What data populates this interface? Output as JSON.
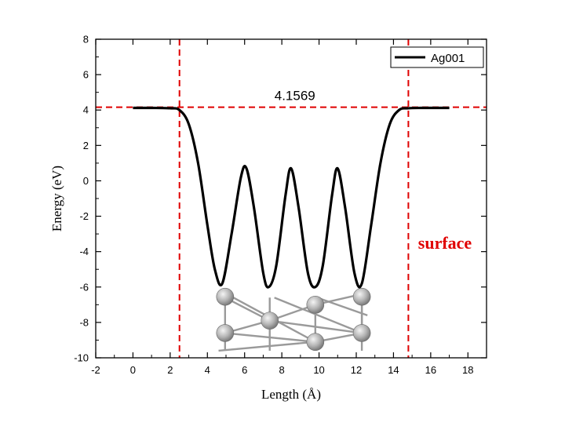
{
  "chart_data": {
    "type": "line",
    "title": "",
    "xlabel": "Length (Å)",
    "ylabel": "Energy (eV)",
    "xlim": [
      -2,
      19
    ],
    "ylim": [
      -10,
      8
    ],
    "xticks": [
      -2,
      0,
      2,
      4,
      6,
      8,
      10,
      12,
      14,
      16,
      18
    ],
    "yticks": [
      -10,
      -8,
      -6,
      -4,
      -2,
      0,
      2,
      4,
      6,
      8
    ],
    "grid": false,
    "legend_position": "top-right",
    "series": [
      {
        "name": "Ag001",
        "color": "#000000",
        "x": [
          0.0,
          1.0,
          2.0,
          2.5,
          3.0,
          3.5,
          4.0,
          4.4,
          4.8,
          5.3,
          5.8,
          6.1,
          6.5,
          7.0,
          7.3,
          7.7,
          8.2,
          8.5,
          8.9,
          9.4,
          9.8,
          10.2,
          10.7,
          11.0,
          11.4,
          11.9,
          12.3,
          12.8,
          13.3,
          13.8,
          14.3,
          14.8,
          15.5,
          16.5,
          17.0
        ],
        "y": [
          4.12,
          4.12,
          4.1,
          4.0,
          3.2,
          1.0,
          -2.5,
          -5.0,
          -5.8,
          -3.0,
          0.2,
          0.7,
          -1.5,
          -5.2,
          -6.0,
          -4.8,
          -0.8,
          0.7,
          -1.5,
          -5.2,
          -6.0,
          -4.8,
          -0.8,
          0.7,
          -1.5,
          -5.2,
          -5.8,
          -2.5,
          1.0,
          3.2,
          4.0,
          4.1,
          4.12,
          4.12,
          4.12
        ]
      }
    ],
    "reference_lines": {
      "horizontal": [
        {
          "y": 4.1569,
          "label": "4.1569",
          "color": "#e00000"
        }
      ],
      "vertical": [
        {
          "x": 2.5,
          "color": "#e00000"
        },
        {
          "x": 14.8,
          "color": "#e00000"
        }
      ]
    },
    "annotations": [
      {
        "text": "surface",
        "color": "#e00000"
      }
    ],
    "atoms_inset": {
      "atom_color": "#a8a8a8",
      "bond_color": "#9a9a9a"
    }
  }
}
